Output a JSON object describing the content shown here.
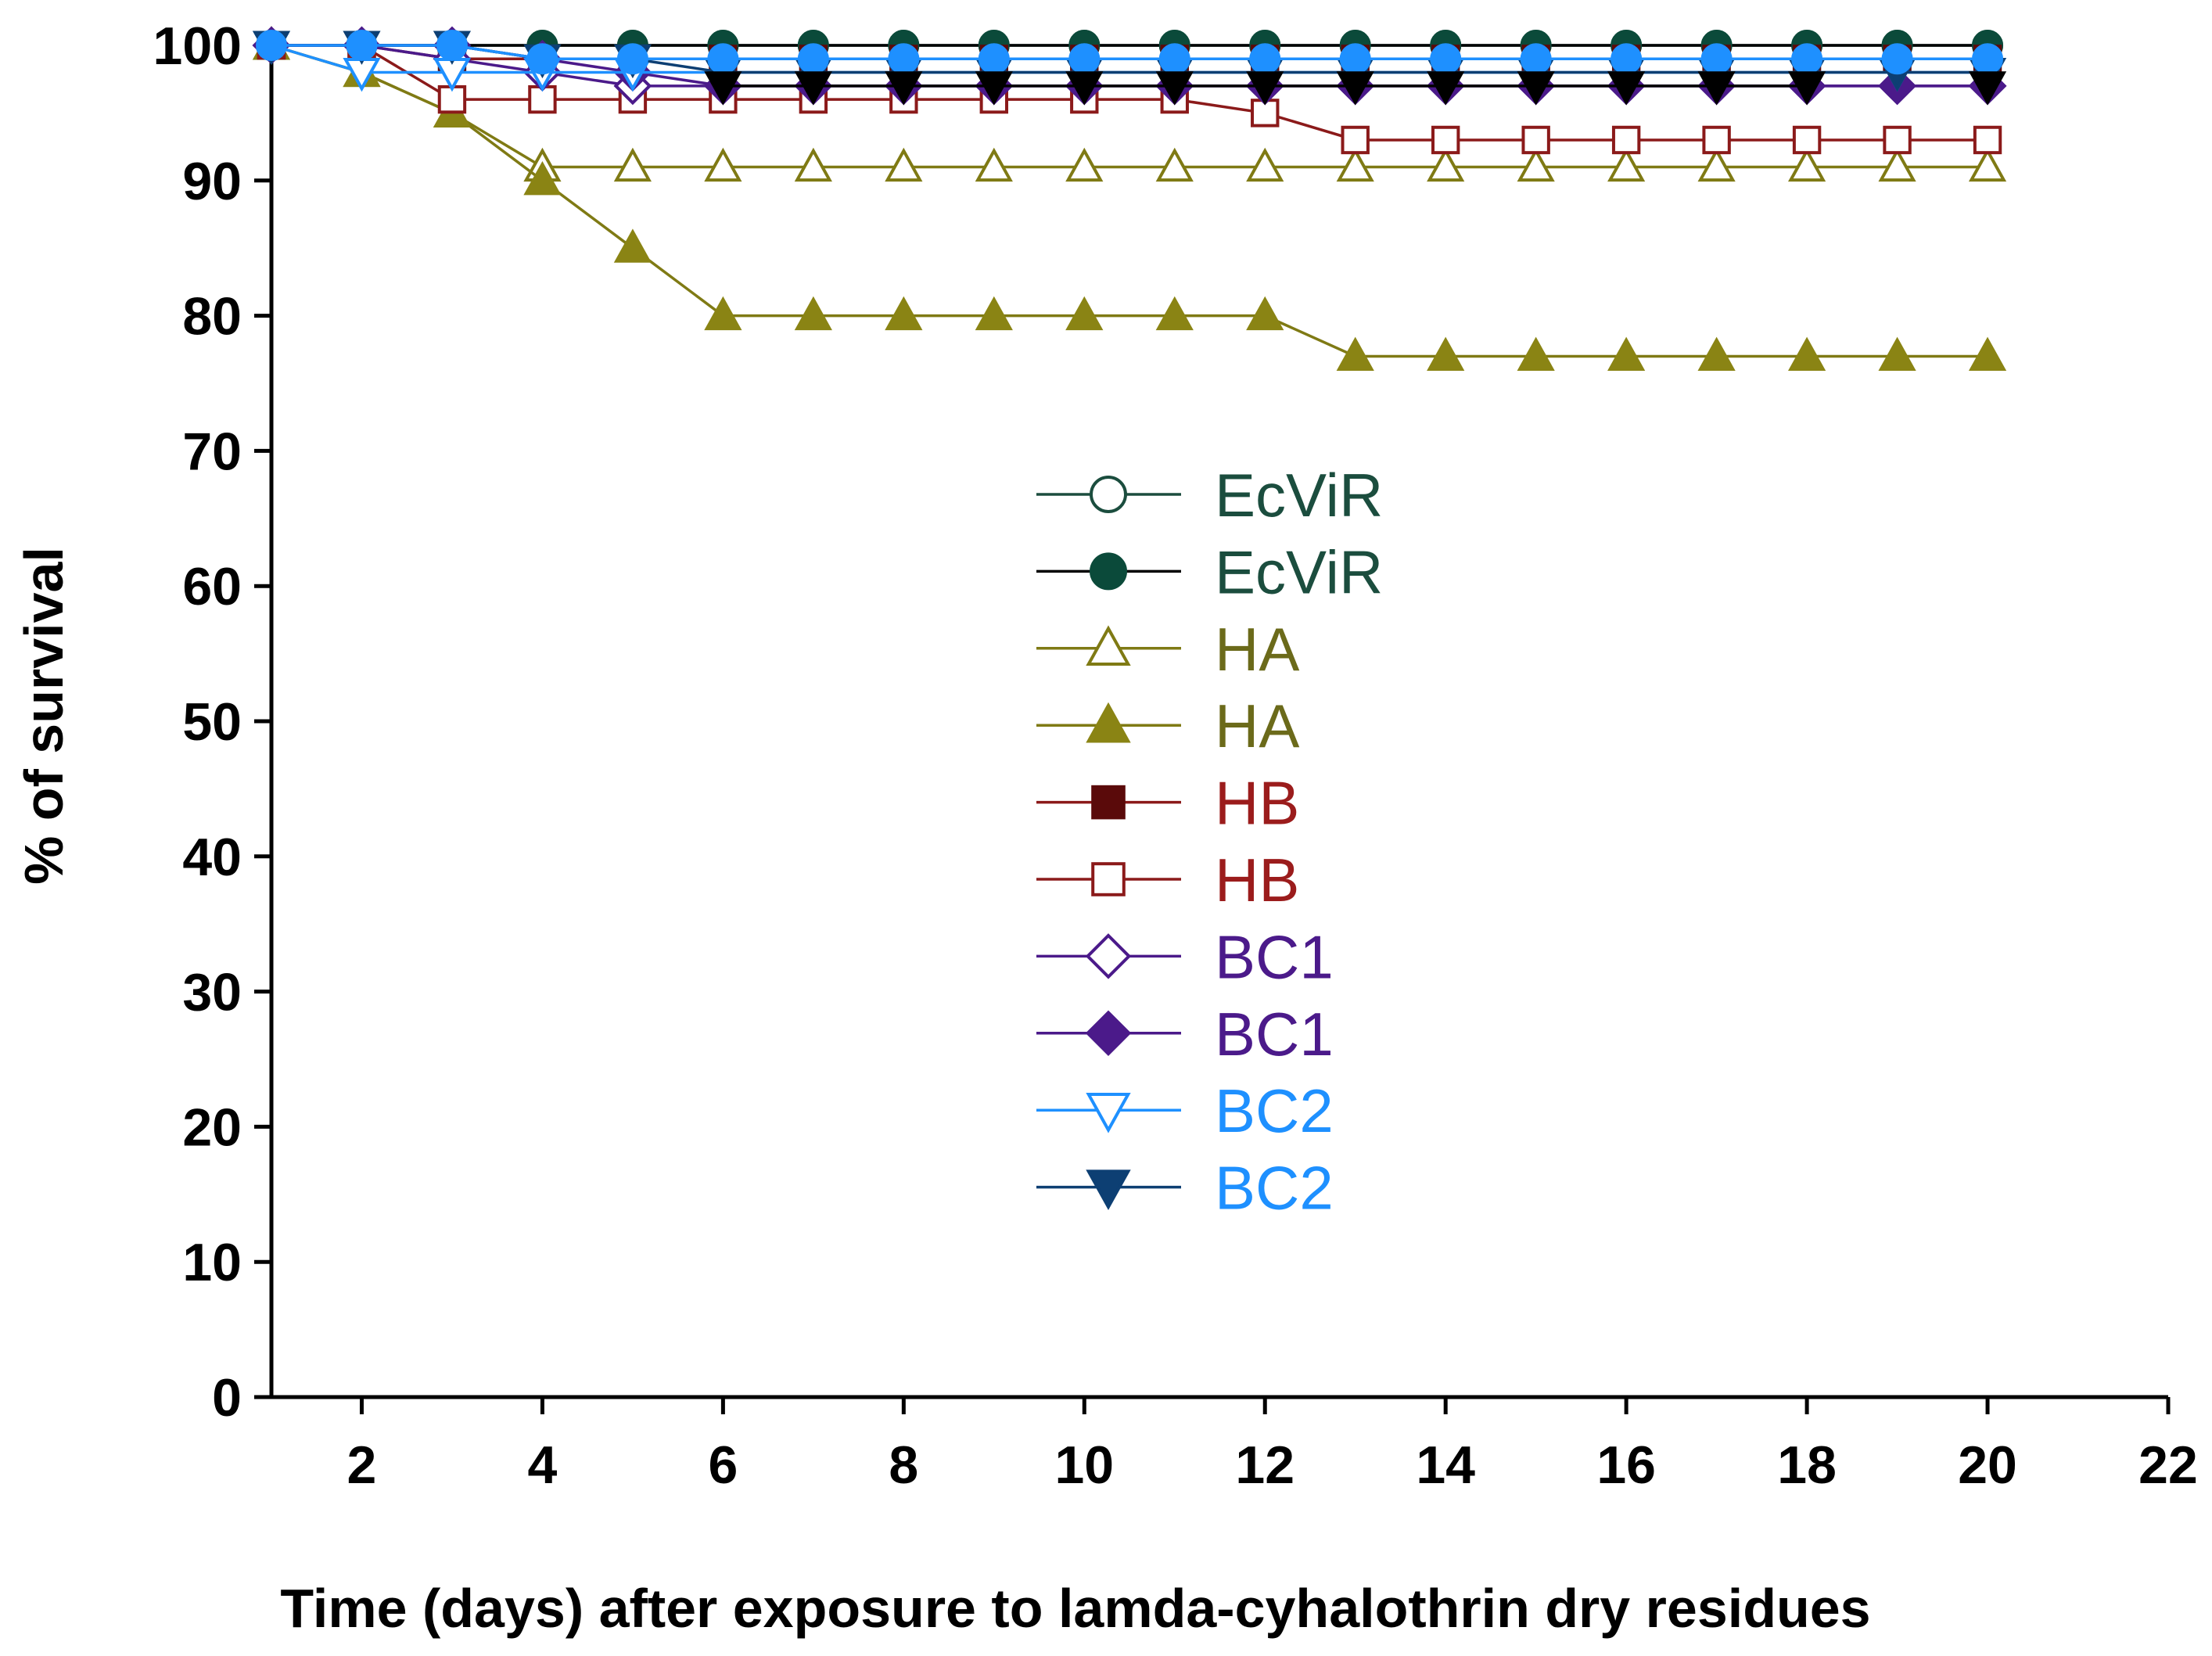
{
  "chart_data": {
    "type": "line",
    "title": "",
    "xlabel": "Time (days) after exposure to lamda-cyhalothrin dry residues",
    "ylabel": "% of survival",
    "xlim": [
      1,
      22
    ],
    "ylim": [
      0,
      100
    ],
    "xticks": [
      2,
      4,
      6,
      8,
      10,
      12,
      14,
      16,
      18,
      20,
      22
    ],
    "yticks": [
      0,
      10,
      20,
      30,
      40,
      50,
      60,
      70,
      80,
      90,
      100
    ],
    "grid": false,
    "legend_position": "center",
    "x": [
      1,
      2,
      3,
      4,
      5,
      6,
      7,
      8,
      9,
      10,
      11,
      12,
      13,
      14,
      15,
      16,
      17,
      18,
      19,
      20
    ],
    "series": [
      {
        "name": "EcViR",
        "marker": "circle",
        "filled": false,
        "line_color": "#1b4d3e",
        "marker_color": "#1b4d3e",
        "label_color": "#1b4d3e",
        "values": [
          100,
          100,
          100,
          100,
          100,
          100,
          100,
          100,
          100,
          100,
          100,
          100,
          100,
          100,
          100,
          100,
          100,
          100,
          100,
          100
        ]
      },
      {
        "name": "EcViR",
        "marker": "circle",
        "filled": true,
        "line_color": "#000000",
        "marker_color": "#0b4a3a",
        "label_color": "#1b4d3e",
        "values": [
          100,
          100,
          100,
          100,
          100,
          100,
          100,
          100,
          100,
          100,
          100,
          100,
          100,
          100,
          100,
          100,
          100,
          100,
          100,
          100
        ]
      },
      {
        "name": "HA",
        "marker": "triangle-up",
        "filled": false,
        "line_color": "#7f7a14",
        "marker_color": "#7f7a14",
        "label_color": "#6b6a1a",
        "values": [
          100,
          98,
          95,
          91,
          91,
          91,
          91,
          91,
          91,
          91,
          91,
          91,
          91,
          91,
          91,
          91,
          91,
          91,
          91,
          91
        ]
      },
      {
        "name": "HA",
        "marker": "triangle-up",
        "filled": true,
        "line_color": "#7f7a14",
        "marker_color": "#8a8414",
        "label_color": "#6b6a1a",
        "values": [
          100,
          98,
          95,
          90,
          85,
          80,
          80,
          80,
          80,
          80,
          80,
          80,
          77,
          77,
          77,
          77,
          77,
          77,
          77,
          77
        ]
      },
      {
        "name": "HB",
        "marker": "square",
        "filled": true,
        "line_color": "#8b1a1a",
        "marker_color": "#5a0a0a",
        "label_color": "#9b1c1c",
        "values": [
          100,
          100,
          99,
          99,
          99,
          99,
          99,
          99,
          99,
          99,
          99,
          99,
          99,
          99,
          99,
          99,
          99,
          99,
          99,
          99
        ]
      },
      {
        "name": "HB",
        "marker": "square",
        "filled": false,
        "line_color": "#8b1a1a",
        "marker_color": "#8b1a1a",
        "label_color": "#9b1c1c",
        "values": [
          100,
          100,
          96,
          96,
          96,
          96,
          96,
          96,
          96,
          96,
          96,
          95,
          93,
          93,
          93,
          93,
          93,
          93,
          93,
          93
        ]
      },
      {
        "name": "BC1",
        "marker": "diamond",
        "filled": false,
        "line_color": "#4b1a8a",
        "marker_color": "#4b1a8a",
        "label_color": "#4b1a8a",
        "values": [
          100,
          100,
          99,
          98,
          97,
          97,
          97,
          97,
          97,
          97,
          97,
          97,
          97,
          97,
          97,
          97,
          97,
          97,
          97,
          97
        ]
      },
      {
        "name": "BC1",
        "marker": "diamond",
        "filled": true,
        "line_color": "#4b1a8a",
        "marker_color": "#4b1a8a",
        "label_color": "#4b1a8a",
        "values": [
          100,
          100,
          100,
          99,
          98,
          97,
          97,
          97,
          97,
          97,
          97,
          97,
          97,
          97,
          97,
          97,
          97,
          97,
          97,
          97
        ]
      },
      {
        "name": "BC2",
        "marker": "triangle-down",
        "filled": false,
        "line_color": "#1e90ff",
        "marker_color": "#1e90ff",
        "label_color": "#1e90ff",
        "values": [
          100,
          98,
          98,
          98,
          98,
          98,
          98,
          98,
          98,
          98,
          98,
          98,
          98,
          98,
          98,
          98,
          98,
          98,
          98,
          98
        ]
      },
      {
        "name": "BC2",
        "marker": "triangle-down",
        "filled": true,
        "line_color": "#0d3f73",
        "marker_color": "#0d3f73",
        "label_color": "#1e90ff",
        "values": [
          100,
          100,
          100,
          99,
          99,
          98,
          98,
          98,
          98,
          98,
          98,
          98,
          98,
          98,
          98,
          98,
          98,
          98,
          98,
          98
        ]
      },
      {
        "name": "",
        "marker": "circle",
        "filled": true,
        "line_color": "#1e90ff",
        "marker_color": "#1e90ff",
        "label_color": "#1e90ff",
        "in_legend": false,
        "values": [
          100,
          100,
          100,
          99,
          99,
          99,
          99,
          99,
          99,
          99,
          99,
          99,
          99,
          99,
          99,
          99,
          99,
          99,
          99,
          99
        ]
      },
      {
        "name": "",
        "marker": "triangle-down",
        "filled": true,
        "line_color": "#000000",
        "marker_color": "#000000",
        "label_color": "#000000",
        "in_legend": false,
        "values": [
          null,
          null,
          null,
          null,
          null,
          97,
          97,
          97,
          97,
          97,
          97,
          97,
          97,
          97,
          97,
          97,
          97,
          97,
          null,
          97
        ]
      }
    ]
  }
}
